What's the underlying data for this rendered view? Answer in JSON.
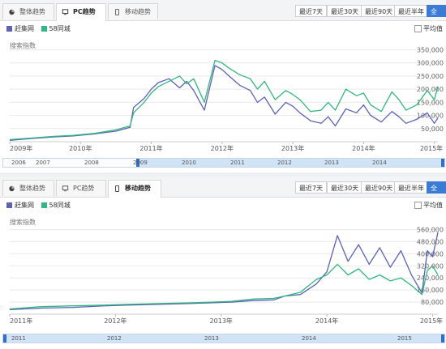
{
  "colors": {
    "series1": "#5b62b8",
    "series2": "#2fb87f",
    "accent": "#3a7bd5",
    "grid": "#e9e9e9"
  },
  "panels": [
    {
      "tabs": [
        {
          "label": "整体趋势",
          "icon": "pie-chart-icon",
          "active": false
        },
        {
          "label": "PC趋势",
          "icon": "monitor-icon",
          "active": true
        },
        {
          "label": "移动趋势",
          "icon": "mobile-icon",
          "active": false
        }
      ],
      "ranges": [
        "最近7天",
        "最近30天",
        "最近90天",
        "最近半年",
        "全部"
      ],
      "active_range": "全部",
      "legend": [
        "赶集网",
        "58同城"
      ],
      "avg_label": "平均值",
      "ylabel": "搜索指数",
      "navigator_labels": [
        "2006",
        "2007",
        "2008",
        "2009",
        "2010",
        "2011",
        "2012",
        "2013",
        "2014"
      ]
    },
    {
      "tabs": [
        {
          "label": "整体趋势",
          "icon": "pie-chart-icon",
          "active": false
        },
        {
          "label": "PC趋势",
          "icon": "monitor-icon",
          "active": false
        },
        {
          "label": "移动趋势",
          "icon": "mobile-icon",
          "active": true
        }
      ],
      "ranges": [
        "最近7天",
        "最近30天",
        "最近90天",
        "最近半年",
        "全部"
      ],
      "active_range": "全部",
      "legend": [
        "赶集网",
        "58同城"
      ],
      "avg_label": "平均值",
      "ylabel": "搜索指数",
      "navigator_labels": [
        "2011",
        "2012",
        "2013",
        "2014",
        "2015"
      ]
    }
  ],
  "chart_data": [
    {
      "type": "line",
      "title": "PC趋势",
      "ylabel": "搜索指数",
      "x_ticks": [
        "2009年",
        "2010年",
        "2011年",
        "2012年",
        "2013年",
        "2014年",
        "2015年"
      ],
      "y_ticks": [
        "50,000",
        "100,000",
        "150,000",
        "200,000",
        "250,000",
        "300,000",
        "350,000"
      ],
      "xlim": [
        2009.0,
        2015.05
      ],
      "ylim": [
        0,
        370000
      ],
      "legend_position": "top-left",
      "grid": true,
      "series": [
        {
          "name": "赶集网",
          "x": [
            2009.0,
            2009.3,
            2009.6,
            2009.9,
            2010.2,
            2010.5,
            2010.7,
            2010.75,
            2010.9,
            2011.0,
            2011.1,
            2011.25,
            2011.4,
            2011.5,
            2011.6,
            2011.75,
            2011.9,
            2012.0,
            2012.1,
            2012.25,
            2012.4,
            2012.5,
            2012.6,
            2012.75,
            2012.9,
            2013.0,
            2013.1,
            2013.25,
            2013.4,
            2013.5,
            2013.6,
            2013.75,
            2013.9,
            2014.0,
            2014.1,
            2014.25,
            2014.4,
            2014.5,
            2014.6,
            2014.75,
            2014.9,
            2015.0,
            2015.05
          ],
          "y": [
            5000,
            12000,
            18000,
            22000,
            30000,
            40000,
            55000,
            130000,
            165000,
            200000,
            225000,
            240000,
            205000,
            230000,
            195000,
            120000,
            290000,
            275000,
            250000,
            215000,
            195000,
            150000,
            170000,
            105000,
            150000,
            135000,
            110000,
            80000,
            70000,
            95000,
            60000,
            125000,
            110000,
            140000,
            100000,
            75000,
            115000,
            95000,
            70000,
            85000,
            110000,
            70000,
            90000
          ]
        },
        {
          "name": "58同城",
          "x": [
            2009.0,
            2009.3,
            2009.6,
            2009.9,
            2010.2,
            2010.5,
            2010.7,
            2010.75,
            2010.9,
            2011.0,
            2011.1,
            2011.25,
            2011.4,
            2011.5,
            2011.6,
            2011.75,
            2011.9,
            2012.0,
            2012.1,
            2012.25,
            2012.4,
            2012.5,
            2012.6,
            2012.75,
            2012.9,
            2013.0,
            2013.1,
            2013.25,
            2013.4,
            2013.5,
            2013.6,
            2013.75,
            2013.9,
            2014.0,
            2014.1,
            2014.25,
            2014.4,
            2014.5,
            2014.6,
            2014.75,
            2014.9,
            2015.0,
            2015.05
          ],
          "y": [
            8000,
            14000,
            20000,
            24000,
            32000,
            45000,
            60000,
            110000,
            150000,
            185000,
            210000,
            230000,
            250000,
            220000,
            240000,
            150000,
            310000,
            300000,
            280000,
            255000,
            240000,
            200000,
            230000,
            160000,
            195000,
            180000,
            160000,
            115000,
            120000,
            150000,
            120000,
            200000,
            175000,
            185000,
            140000,
            115000,
            190000,
            160000,
            120000,
            140000,
            195000,
            160000,
            210000
          ]
        }
      ]
    },
    {
      "type": "line",
      "title": "移动趋势",
      "ylabel": "搜索指数",
      "x_ticks": [
        "2011年",
        "2012年",
        "2013年",
        "2014年",
        "2015年"
      ],
      "y_ticks": [
        "80,000",
        "160,000",
        "240,000",
        "320,000",
        "400,000",
        "480,000",
        "560,000"
      ],
      "xlim": [
        2011.0,
        2015.05
      ],
      "ylim": [
        0,
        600000
      ],
      "legend_position": "top-left",
      "grid": true,
      "series": [
        {
          "name": "赶集网",
          "x": [
            2011.0,
            2011.3,
            2011.6,
            2011.9,
            2012.1,
            2012.4,
            2012.7,
            2012.9,
            2013.1,
            2013.3,
            2013.5,
            2013.6,
            2013.75,
            2013.9,
            2014.0,
            2014.1,
            2014.2,
            2014.3,
            2014.4,
            2014.5,
            2014.6,
            2014.7,
            2014.8,
            2014.9,
            2014.95,
            2015.0,
            2015.05
          ],
          "y": [
            30000,
            40000,
            45000,
            55000,
            60000,
            65000,
            70000,
            75000,
            80000,
            90000,
            95000,
            120000,
            130000,
            200000,
            280000,
            520000,
            350000,
            460000,
            330000,
            440000,
            310000,
            420000,
            260000,
            140000,
            420000,
            380000,
            540000
          ]
        },
        {
          "name": "58同城",
          "x": [
            2011.0,
            2011.3,
            2011.6,
            2011.9,
            2012.1,
            2012.4,
            2012.7,
            2012.9,
            2013.1,
            2013.3,
            2013.5,
            2013.6,
            2013.75,
            2013.9,
            2014.0,
            2014.1,
            2014.2,
            2014.3,
            2014.4,
            2014.5,
            2014.6,
            2014.7,
            2014.8,
            2014.9,
            2014.95,
            2015.0,
            2015.05
          ],
          "y": [
            35000,
            50000,
            55000,
            60000,
            65000,
            70000,
            75000,
            80000,
            85000,
            100000,
            105000,
            120000,
            145000,
            230000,
            260000,
            330000,
            260000,
            300000,
            230000,
            260000,
            220000,
            240000,
            190000,
            130000,
            290000,
            320000,
            260000
          ]
        }
      ]
    }
  ]
}
